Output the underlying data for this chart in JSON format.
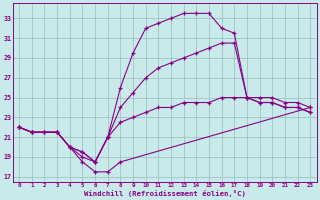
{
  "xlabel": "Windchill (Refroidissement éolien,°C)",
  "xlim": [
    -0.5,
    23.5
  ],
  "ylim": [
    16.5,
    34.5
  ],
  "yticks": [
    17,
    19,
    21,
    23,
    25,
    27,
    29,
    31,
    33
  ],
  "xticks": [
    0,
    1,
    2,
    3,
    4,
    5,
    6,
    7,
    8,
    9,
    10,
    11,
    12,
    13,
    14,
    15,
    16,
    17,
    18,
    19,
    20,
    21,
    22,
    23
  ],
  "bg_color": "#c8eaea",
  "line_color": "#880088",
  "grid_color": "#99bbbb",
  "curve1_x": [
    0,
    1,
    2,
    3,
    4,
    5,
    6,
    7,
    8,
    9,
    10,
    11,
    12,
    13,
    14,
    15,
    16,
    17,
    18,
    19,
    20,
    21,
    22,
    23
  ],
  "curve1_y": [
    22.0,
    21.5,
    21.5,
    21.5,
    20.0,
    19.5,
    18.5,
    21.0,
    26.0,
    29.5,
    32.0,
    32.5,
    33.0,
    33.5,
    33.5,
    33.5,
    32.0,
    31.5,
    25.0,
    24.5,
    24.5,
    24.0,
    24.0,
    23.5
  ],
  "curve2_x": [
    0,
    1,
    2,
    3,
    4,
    5,
    6,
    7,
    8,
    9,
    10,
    11,
    12,
    13,
    14,
    15,
    16,
    17,
    18,
    19,
    20,
    21,
    22,
    23
  ],
  "curve2_y": [
    22.0,
    21.5,
    21.5,
    21.5,
    20.0,
    19.5,
    18.5,
    21.0,
    24.0,
    25.5,
    27.0,
    28.0,
    28.5,
    29.0,
    29.5,
    30.0,
    30.5,
    30.5,
    25.0,
    24.5,
    24.5,
    24.0,
    24.0,
    23.5
  ],
  "curve3_x": [
    0,
    1,
    2,
    3,
    4,
    5,
    6,
    7,
    8,
    9,
    10,
    11,
    12,
    13,
    14,
    15,
    16,
    17,
    18,
    19,
    20,
    21,
    22,
    23
  ],
  "curve3_y": [
    22.0,
    21.5,
    21.5,
    21.5,
    20.0,
    19.0,
    18.5,
    21.0,
    22.5,
    23.0,
    23.5,
    24.0,
    24.0,
    24.5,
    24.5,
    24.5,
    25.0,
    25.0,
    25.0,
    25.0,
    25.0,
    24.5,
    24.5,
    24.0
  ],
  "curve4_x": [
    0,
    1,
    3,
    4,
    5,
    6,
    7,
    8,
    23
  ],
  "curve4_y": [
    22.0,
    21.5,
    21.5,
    20.0,
    18.5,
    17.5,
    17.5,
    18.5,
    24.0
  ]
}
